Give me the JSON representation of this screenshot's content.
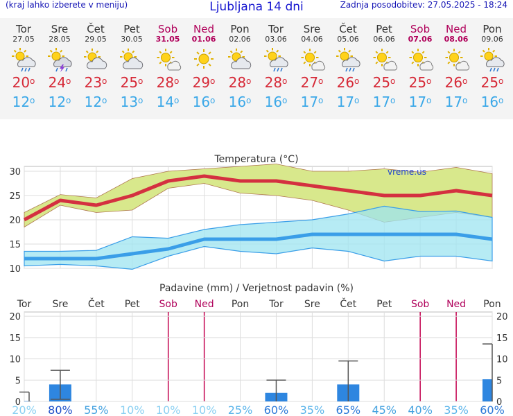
{
  "header": {
    "menu_hint": "(kraj lahko izberete v meniju)",
    "title": "Ljubljana 14 dni",
    "updated": "Zadnja posodobitev: 27.05.2025 - 18:24"
  },
  "days": [
    {
      "name": "Tor",
      "date": "27.05",
      "weekend": false,
      "icon": "cloud-rain-sun-icon",
      "tmax": "20",
      "tmin": "12"
    },
    {
      "name": "Sre",
      "date": "28.05",
      "weekend": false,
      "icon": "thunderstorm-sun-icon",
      "tmax": "24",
      "tmin": "12"
    },
    {
      "name": "Čet",
      "date": "29.05",
      "weekend": false,
      "icon": "partly-cloudy-icon",
      "tmax": "23",
      "tmin": "12"
    },
    {
      "name": "Pet",
      "date": "30.05",
      "weekend": false,
      "icon": "partly-cloudy-icon",
      "tmax": "25",
      "tmin": "13"
    },
    {
      "name": "Sob",
      "date": "31.05",
      "weekend": true,
      "icon": "sun-small-cloud-icon",
      "tmax": "28",
      "tmin": "14"
    },
    {
      "name": "Ned",
      "date": "01.06",
      "weekend": true,
      "icon": "sun-icon",
      "tmax": "29",
      "tmin": "16"
    },
    {
      "name": "Pon",
      "date": "02.06",
      "weekend": false,
      "icon": "partly-cloudy-icon",
      "tmax": "28",
      "tmin": "16"
    },
    {
      "name": "Tor",
      "date": "03.06",
      "weekend": false,
      "icon": "cloud-rain-sun-icon",
      "tmax": "28",
      "tmin": "16"
    },
    {
      "name": "Sre",
      "date": "04.06",
      "weekend": false,
      "icon": "sun-small-cloud-icon",
      "tmax": "27",
      "tmin": "17"
    },
    {
      "name": "Čet",
      "date": "05.06",
      "weekend": false,
      "icon": "cloud-rain-sun-icon",
      "tmax": "26",
      "tmin": "17"
    },
    {
      "name": "Pet",
      "date": "06.06",
      "weekend": false,
      "icon": "sun-small-cloud-icon",
      "tmax": "25",
      "tmin": "17"
    },
    {
      "name": "Sob",
      "date": "07.06",
      "weekend": true,
      "icon": "sun-small-cloud-icon",
      "tmax": "25",
      "tmin": "17"
    },
    {
      "name": "Ned",
      "date": "08.06",
      "weekend": true,
      "icon": "sun-small-cloud-icon",
      "tmax": "26",
      "tmin": "17"
    },
    {
      "name": "Pon",
      "date": "09.06",
      "weekend": false,
      "icon": "cloud-rain-sun-icon",
      "tmax": "25",
      "tmin": "16"
    }
  ],
  "colors": {
    "max_line": "#d43040",
    "max_band": "#d8e88c",
    "min_line": "#3a9ee8",
    "min_band": "#9ee4f0",
    "overlap": "#a2d88a",
    "precip_bar": "#2e86e0",
    "weekend": "#b0005a",
    "text": "#333333"
  },
  "chart_data": [
    {
      "type": "line",
      "title": "Temperatura (°C)",
      "watermark": "vreme.us",
      "categories": [
        "27.05",
        "28.05",
        "29.05",
        "30.05",
        "31.05",
        "01.06",
        "02.06",
        "03.06",
        "04.06",
        "05.06",
        "06.06",
        "07.06",
        "08.06",
        "09.06"
      ],
      "ylim": [
        10,
        31
      ],
      "yticks": [
        10,
        15,
        20,
        25,
        30
      ],
      "series": [
        {
          "values": [
            20,
            24,
            23,
            25,
            28,
            29,
            28,
            28,
            27,
            26,
            25,
            25,
            26,
            25
          ]
        },
        {
          "values": [
            12,
            12,
            12,
            13,
            14,
            16,
            16,
            16,
            17,
            17,
            17,
            17,
            17,
            16
          ]
        }
      ],
      "bands": [
        {
          "upper": [
            21.5,
            25.2,
            24.5,
            28.5,
            30,
            30.5,
            31,
            31.5,
            30,
            30,
            30.5,
            29.8,
            30.8,
            29.5
          ],
          "lower": [
            18.5,
            23,
            21.5,
            22,
            26.5,
            27.5,
            25.5,
            25,
            24,
            22,
            19.5,
            20.5,
            21.5,
            20.5
          ]
        },
        {
          "upper": [
            13.5,
            13.5,
            13.7,
            16.5,
            16.2,
            18,
            19,
            19.5,
            20,
            21.2,
            22.8,
            21.7,
            21.8,
            20.5
          ],
          "lower": [
            10.5,
            10.8,
            10.5,
            9.8,
            12.5,
            14.5,
            13.5,
            13,
            14.2,
            13.5,
            11.5,
            12.5,
            12.5,
            11.5
          ]
        }
      ]
    },
    {
      "type": "bar",
      "title": "Padavine (mm) / Verjetnost padavin (%)",
      "categories": [
        "Tor",
        "Sre",
        "Čet",
        "Pet",
        "Sob",
        "Ned",
        "Pon",
        "Tor",
        "Sre",
        "Čet",
        "Pet",
        "Sob",
        "Ned",
        "Pon"
      ],
      "weekend": [
        false,
        false,
        false,
        false,
        true,
        true,
        false,
        false,
        false,
        false,
        false,
        true,
        true,
        false
      ],
      "values": [
        0.1,
        4,
        0,
        0,
        0,
        0,
        0,
        2,
        0,
        4,
        0,
        0,
        0,
        5.2
      ],
      "range_low": [
        0,
        0.5,
        0,
        0,
        0,
        0,
        0,
        0,
        0,
        0,
        0,
        0,
        0,
        0
      ],
      "range_high": [
        2.2,
        7.3,
        0,
        0,
        0,
        0,
        0,
        5,
        0,
        9.5,
        0,
        0,
        0,
        13.5
      ],
      "probability": [
        "20%",
        "80%",
        "55%",
        "10%",
        "10%",
        "10%",
        "25%",
        "60%",
        "35%",
        "65%",
        "45%",
        "40%",
        "35%",
        "60%"
      ],
      "ylim": [
        0,
        21
      ],
      "yticks": [
        0,
        5,
        10,
        15,
        20
      ]
    }
  ]
}
